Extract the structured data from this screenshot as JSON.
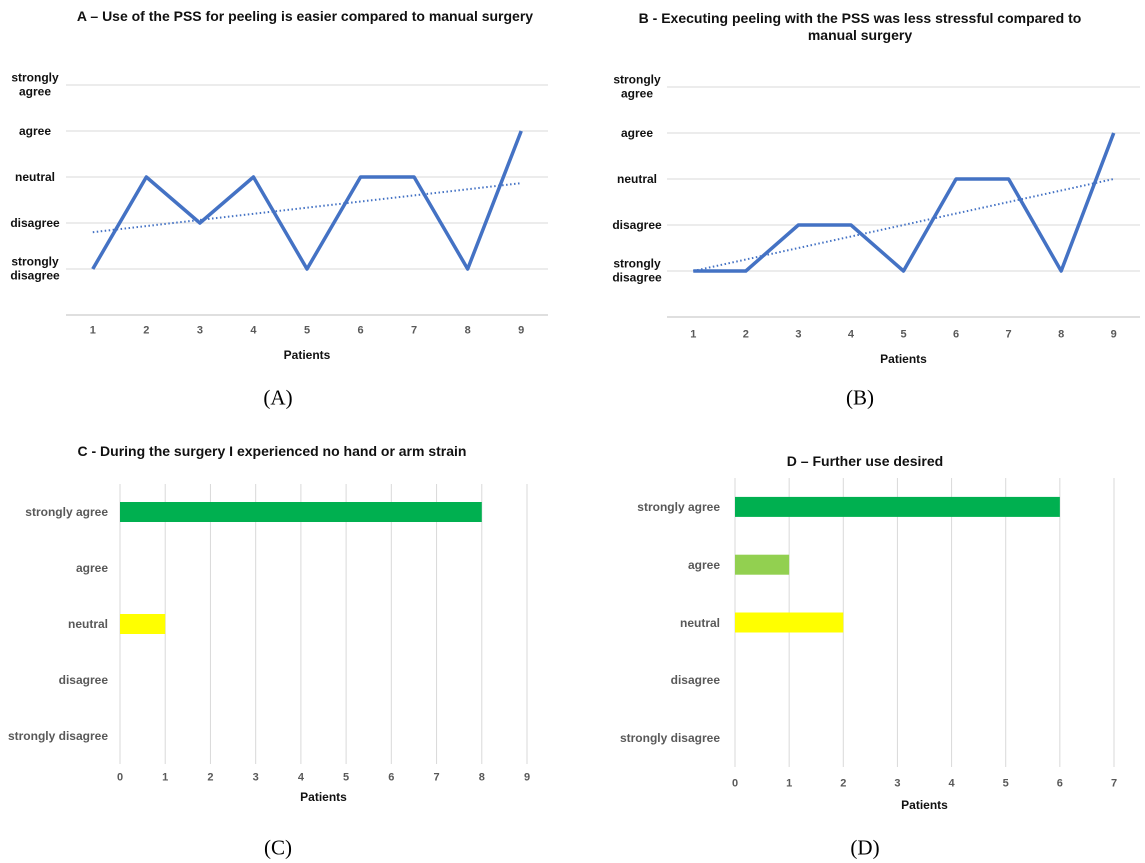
{
  "chart_data": [
    {
      "type": "line",
      "title": "A – Use of the PSS for peeling is easier compared to manual surgery",
      "caption": "(A)",
      "categories": [
        "1",
        "2",
        "3",
        "4",
        "5",
        "6",
        "7",
        "8",
        "9"
      ],
      "values": [
        1,
        3,
        2,
        3,
        1,
        3,
        3,
        1,
        4
      ],
      "color": "#4472c4",
      "trendline": true,
      "x_label": "Patients",
      "ylim": [
        0,
        5
      ],
      "yticks": [
        {
          "value": 1,
          "label": "strongly disagree"
        },
        {
          "value": 2,
          "label": "disagree"
        },
        {
          "value": 3,
          "label": "neutral"
        },
        {
          "value": 4,
          "label": "agree"
        },
        {
          "value": 5,
          "label": "strongly agree"
        }
      ],
      "grid": true
    },
    {
      "type": "line",
      "title": "B - Executing peeling with the PSS was less stressful compared to manual surgery",
      "caption": "(B)",
      "categories": [
        "1",
        "2",
        "3",
        "4",
        "5",
        "6",
        "7",
        "8",
        "9"
      ],
      "values": [
        1,
        1,
        2,
        2,
        1,
        3,
        3,
        1,
        4
      ],
      "color": "#4472c4",
      "trendline": true,
      "x_label": "Patients",
      "ylim": [
        0,
        5
      ],
      "yticks": [
        {
          "value": 1,
          "label": "strongly disagree"
        },
        {
          "value": 2,
          "label": "disagree"
        },
        {
          "value": 3,
          "label": "neutral"
        },
        {
          "value": 4,
          "label": "agree"
        },
        {
          "value": 5,
          "label": "strongly agree"
        }
      ],
      "grid": true
    },
    {
      "type": "hbar",
      "title": "C - During the surgery I experienced no hand or arm strain",
      "caption": "(C)",
      "categories": [
        "strongly agree",
        "agree",
        "neutral",
        "disagree",
        "strongly disagree"
      ],
      "values": [
        8,
        0,
        1,
        0,
        0
      ],
      "colors": [
        "#00b050",
        null,
        "#ffff00",
        null,
        null
      ],
      "x_label": "Patients",
      "xlim": [
        0,
        9
      ],
      "xticks": [
        0,
        1,
        2,
        3,
        4,
        5,
        6,
        7,
        8,
        9
      ],
      "grid": true
    },
    {
      "type": "hbar",
      "title": "D – Further use desired",
      "caption": "(D)",
      "categories": [
        "strongly agree",
        "agree",
        "neutral",
        "disagree",
        "strongly disagree"
      ],
      "values": [
        6,
        1,
        2,
        0,
        0
      ],
      "colors": [
        "#00b050",
        "#92d050",
        "#ffff00",
        null,
        null
      ],
      "x_label": "Patients",
      "xlim": [
        0,
        7
      ],
      "xticks": [
        0,
        1,
        2,
        3,
        4,
        5,
        6,
        7
      ],
      "grid": true
    }
  ]
}
